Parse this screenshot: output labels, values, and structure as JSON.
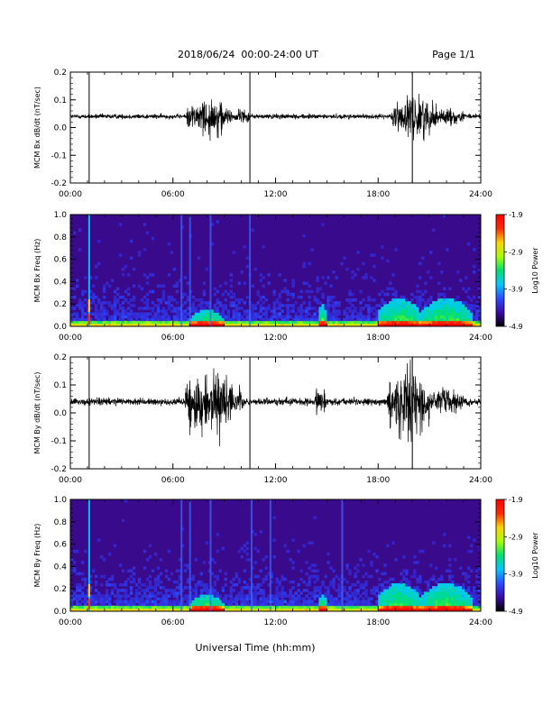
{
  "header": {
    "date_range": "2018/06/24  00:00-24:00 UT",
    "page": "Page 1/1"
  },
  "footer": {
    "xlabel": "Universal Time (hh:mm)"
  },
  "colors": {
    "trace": "#000000",
    "spectrogram_background": "#3a0a8c",
    "colormap": [
      "#000000",
      "#3b0aa8",
      "#2a4cff",
      "#00c8ff",
      "#00e070",
      "#aaff00",
      "#ffd400",
      "#ff2a00",
      "#ff0000"
    ]
  },
  "chart_data": [
    {
      "id": "bx-dbdt",
      "type": "line",
      "ylabel": "MCM Bx dB/dt (nT/sec)",
      "xlim": [
        0,
        24
      ],
      "ylim": [
        -0.2,
        0.2
      ],
      "yticks": [
        -0.2,
        -0.1,
        0.0,
        0.1,
        0.2
      ],
      "ytick_labels": [
        "-0.2",
        "-0.1",
        "0.0",
        "0.1",
        "0.2"
      ],
      "xticks": [
        0,
        6,
        12,
        18,
        24
      ],
      "xtick_labels": [
        "00:00",
        "06:00",
        "12:00",
        "18:00",
        "24:00"
      ],
      "baseline": 0.04,
      "noise": 0.008,
      "spikes_up_to_frame": [
        1.1,
        10.5,
        20.0
      ],
      "bursts": [
        {
          "start": 6.8,
          "end": 9.4,
          "amp": 0.05
        },
        {
          "start": 9.4,
          "end": 10.5,
          "amp": 0.015
        },
        {
          "start": 18.8,
          "end": 21.5,
          "amp": 0.06
        },
        {
          "start": 21.5,
          "end": 23.0,
          "amp": 0.02
        }
      ]
    },
    {
      "id": "bx-spectrogram",
      "type": "heatmap",
      "ylabel": "MCM Bx Freq (Hz)",
      "xlim": [
        0,
        24
      ],
      "ylim": [
        0.0,
        1.0
      ],
      "yticks": [
        0.0,
        0.2,
        0.4,
        0.6,
        0.8,
        1.0
      ],
      "ytick_labels": [
        "0.0",
        "0.2",
        "0.4",
        "0.6",
        "0.8",
        "1.0"
      ],
      "xticks": [
        0,
        6,
        12,
        18,
        24
      ],
      "xtick_labels": [
        "00:00",
        "06:00",
        "12:00",
        "18:00",
        "24:00"
      ],
      "colorbar": {
        "label": "Log10 Power",
        "range": [
          -4.9,
          -1.9
        ],
        "ticks": [
          "-1.9",
          "-2.9",
          "-3.9",
          "-4.9"
        ]
      },
      "broadband_lines_hours": [
        1.1,
        6.5,
        7.0,
        8.2,
        10.5
      ],
      "activity_regions": [
        {
          "start": 7.0,
          "end": 9.0,
          "max_freq": 0.15
        },
        {
          "start": 14.5,
          "end": 15.0,
          "max_freq": 0.2
        },
        {
          "start": 18.0,
          "end": 20.5,
          "max_freq": 0.25
        },
        {
          "start": 20.5,
          "end": 23.5,
          "max_freq": 0.25
        }
      ]
    },
    {
      "id": "by-dbdt",
      "type": "line",
      "ylabel": "MCM By dB/dt (nT/sec)",
      "xlim": [
        0,
        24
      ],
      "ylim": [
        -0.2,
        0.2
      ],
      "yticks": [
        -0.2,
        -0.1,
        0.0,
        0.1,
        0.2
      ],
      "ytick_labels": [
        "-0.2",
        "-0.1",
        "0.0",
        "0.1",
        "0.2"
      ],
      "xticks": [
        0,
        6,
        12,
        18,
        24
      ],
      "xtick_labels": [
        "00:00",
        "06:00",
        "12:00",
        "18:00",
        "24:00"
      ],
      "baseline": 0.04,
      "noise": 0.012,
      "spikes_up_to_frame": [
        1.1,
        10.5,
        20.0
      ],
      "bursts": [
        {
          "start": 6.7,
          "end": 9.5,
          "amp": 0.09
        },
        {
          "start": 9.5,
          "end": 10.2,
          "amp": 0.03
        },
        {
          "start": 14.3,
          "end": 15.0,
          "amp": 0.025
        },
        {
          "start": 18.5,
          "end": 21.0,
          "amp": 0.09
        },
        {
          "start": 21.0,
          "end": 23.0,
          "amp": 0.03
        }
      ]
    },
    {
      "id": "by-spectrogram",
      "type": "heatmap",
      "ylabel": "MCM By Freq (Hz)",
      "xlim": [
        0,
        24
      ],
      "ylim": [
        0.0,
        1.0
      ],
      "yticks": [
        0.0,
        0.2,
        0.4,
        0.6,
        0.8,
        1.0
      ],
      "ytick_labels": [
        "0.0",
        "0.2",
        "0.4",
        "0.6",
        "0.8",
        "1.0"
      ],
      "xticks": [
        0,
        6,
        12,
        18,
        24
      ],
      "xtick_labels": [
        "00:00",
        "06:00",
        "12:00",
        "18:00",
        "24:00"
      ],
      "colorbar": {
        "label": "Log10 Power",
        "range": [
          -4.9,
          -1.9
        ],
        "ticks": [
          "-1.9",
          "-2.9",
          "-3.9",
          "-4.9"
        ]
      },
      "broadband_lines_hours": [
        1.1,
        6.5,
        7.0,
        8.2,
        10.6,
        11.7,
        15.9
      ],
      "activity_regions": [
        {
          "start": 7.0,
          "end": 9.0,
          "max_freq": 0.15
        },
        {
          "start": 14.5,
          "end": 15.0,
          "max_freq": 0.15
        },
        {
          "start": 18.0,
          "end": 20.5,
          "max_freq": 0.25
        },
        {
          "start": 20.5,
          "end": 23.5,
          "max_freq": 0.25
        }
      ]
    }
  ]
}
